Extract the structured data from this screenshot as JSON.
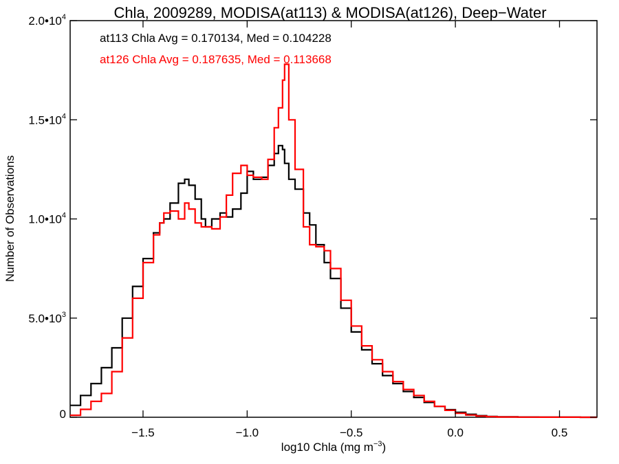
{
  "chart_data": {
    "type": "line",
    "title": "Chla, 2009289, MODISA(at113) & MODISA(at126), Deep−Water",
    "xlabel": "log10 Chla (mg m",
    "xlabel_sup": "−3",
    "xlabel_close": ")",
    "ylabel": "Number of Observations",
    "xlim": [
      -1.85,
      0.68
    ],
    "ylim": [
      0,
      20000
    ],
    "grid": false,
    "x_ticks": [
      -1.5,
      -1.0,
      -0.5,
      0.0,
      0.5
    ],
    "x_tick_labels": [
      "−1.5",
      "−1.0",
      "−0.5",
      "0.0",
      "0.5"
    ],
    "y_ticks": [
      0,
      5000,
      10000,
      15000,
      20000
    ],
    "y_tick_labels": [
      {
        "base": "0",
        "sup": ""
      },
      {
        "base": "5.0•10",
        "sup": "3"
      },
      {
        "base": "1.0•10",
        "sup": "4"
      },
      {
        "base": "1.5•10",
        "sup": "4"
      },
      {
        "base": "2.0•10",
        "sup": "4"
      }
    ],
    "annotations": [
      {
        "text": "at113 Chla Avg = 0.170134, Med = 0.104228",
        "color": "#000000"
      },
      {
        "text": "at126 Chla Avg = 0.187635, Med = 0.113668",
        "color": "#ff0000"
      }
    ],
    "series": [
      {
        "color": "#000000",
        "x": [
          -1.85,
          -1.8,
          -1.75,
          -1.7,
          -1.65,
          -1.6,
          -1.55,
          -1.5,
          -1.45,
          -1.42,
          -1.4,
          -1.37,
          -1.33,
          -1.3,
          -1.28,
          -1.25,
          -1.22,
          -1.2,
          -1.17,
          -1.13,
          -1.1,
          -1.07,
          -1.03,
          -1.0,
          -0.97,
          -0.93,
          -0.9,
          -0.87,
          -0.85,
          -0.83,
          -0.82,
          -0.8,
          -0.77,
          -0.73,
          -0.7,
          -0.67,
          -0.63,
          -0.6,
          -0.55,
          -0.5,
          -0.45,
          -0.4,
          -0.35,
          -0.3,
          -0.25,
          -0.2,
          -0.15,
          -0.1,
          -0.05,
          0.0,
          0.05,
          0.1,
          0.15,
          0.2,
          0.3,
          0.4,
          0.5,
          0.6,
          0.68
        ],
        "y": [
          600,
          1100,
          1700,
          2500,
          3500,
          5000,
          6600,
          8000,
          9300,
          9800,
          10000,
          10800,
          11800,
          12000,
          11700,
          11000,
          10000,
          9600,
          10000,
          10300,
          10100,
          10500,
          11300,
          12400,
          12000,
          12100,
          12700,
          13300,
          13700,
          13500,
          12800,
          12000,
          11500,
          10300,
          9700,
          8700,
          7800,
          7000,
          5500,
          4300,
          3400,
          2700,
          2100,
          1700,
          1300,
          1000,
          750,
          550,
          380,
          250,
          150,
          80,
          40,
          20,
          10,
          5,
          2,
          1,
          0
        ]
      },
      {
        "color": "#ff0000",
        "x": [
          -1.85,
          -1.8,
          -1.75,
          -1.7,
          -1.65,
          -1.6,
          -1.55,
          -1.5,
          -1.45,
          -1.42,
          -1.4,
          -1.37,
          -1.33,
          -1.3,
          -1.28,
          -1.25,
          -1.22,
          -1.2,
          -1.17,
          -1.13,
          -1.1,
          -1.07,
          -1.03,
          -1.0,
          -0.97,
          -0.93,
          -0.9,
          -0.87,
          -0.85,
          -0.83,
          -0.82,
          -0.8,
          -0.77,
          -0.73,
          -0.7,
          -0.67,
          -0.63,
          -0.6,
          -0.55,
          -0.5,
          -0.45,
          -0.4,
          -0.35,
          -0.3,
          -0.25,
          -0.2,
          -0.15,
          -0.1,
          -0.05,
          0.0,
          0.05,
          0.1,
          0.15,
          0.2,
          0.3,
          0.4,
          0.5,
          0.6,
          0.68
        ],
        "y": [
          100,
          400,
          800,
          1200,
          2300,
          4000,
          6000,
          7800,
          9200,
          9800,
          10300,
          10400,
          10000,
          10800,
          10500,
          9800,
          9600,
          9600,
          9500,
          10100,
          11200,
          12300,
          12700,
          12200,
          12100,
          12000,
          13000,
          14600,
          15600,
          17000,
          17800,
          15000,
          12500,
          9600,
          8700,
          8600,
          8400,
          7500,
          5900,
          4600,
          3600,
          2900,
          2300,
          1800,
          1400,
          1100,
          800,
          550,
          350,
          200,
          110,
          60,
          30,
          15,
          8,
          4,
          2,
          1,
          0
        ]
      }
    ]
  }
}
